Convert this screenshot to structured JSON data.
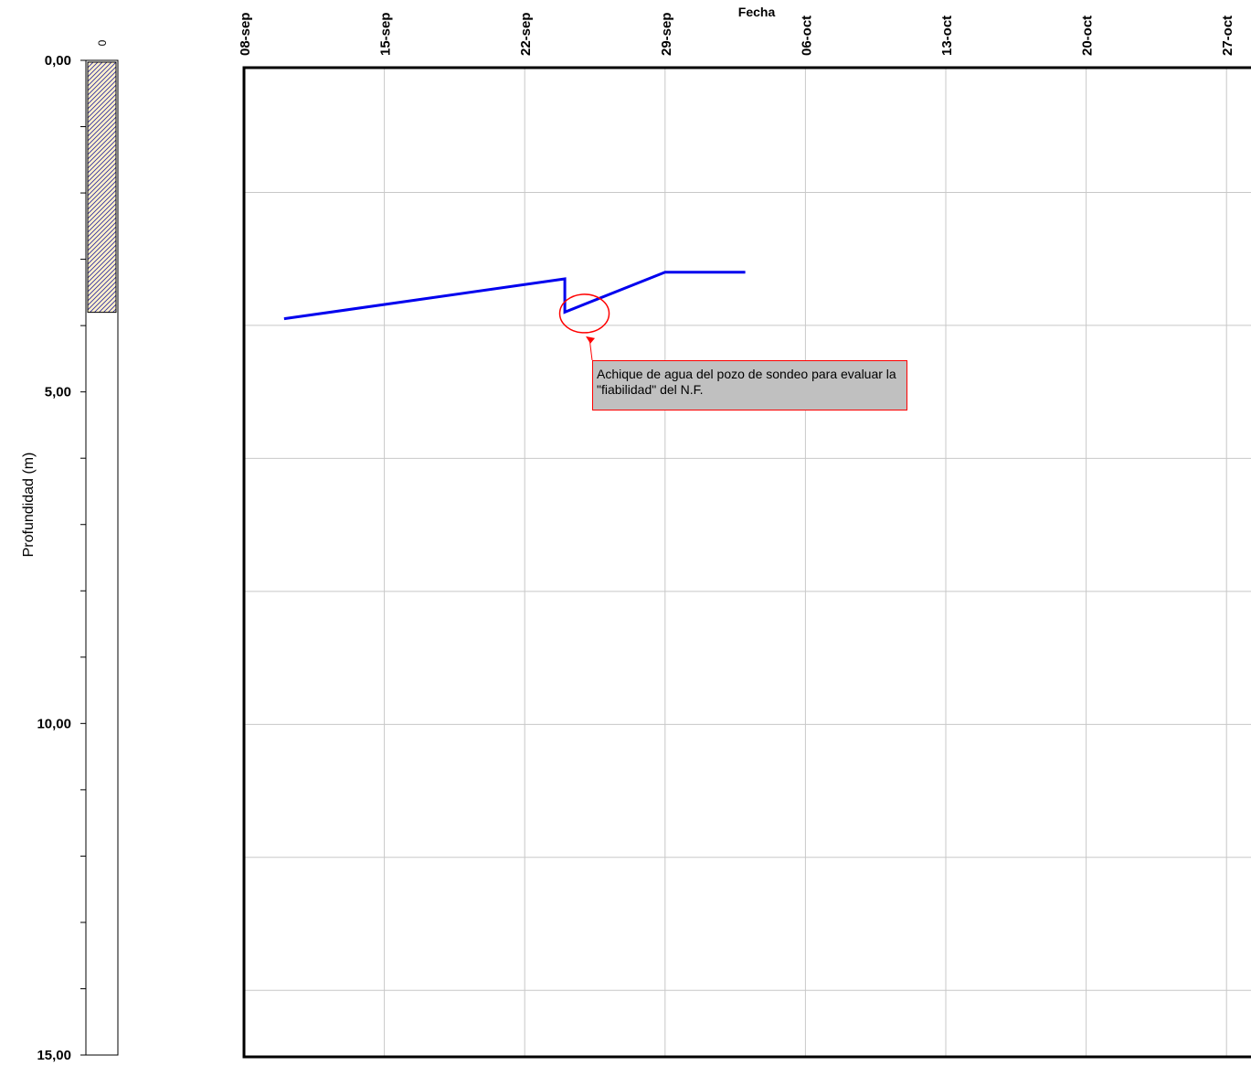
{
  "chart_data": [
    {
      "type": "column",
      "ylabel": "Profundidad (m)",
      "column_label": "0",
      "ylim": [
        0,
        15
      ],
      "yticks": [
        "0,00",
        "5,00",
        "10,00",
        "15,00"
      ],
      "fill_top": 0,
      "fill_bottom": 3.8,
      "fill_color": "#fff2cc",
      "hatch_color": "#3030a0"
    },
    {
      "type": "line",
      "xlabel": "Fecha",
      "xticks": [
        "08-sep",
        "15-sep",
        "22-sep",
        "29-sep",
        "06-oct",
        "13-oct",
        "20-oct",
        "27-oct"
      ],
      "xlim": [
        "2008-09-08",
        "2008-11-03"
      ],
      "ylim": [
        0,
        15
      ],
      "grid": true,
      "series": [
        {
          "color": "#0000ee",
          "points": [
            {
              "x": "2008-09-10",
              "y": 3.9
            },
            {
              "x": "2008-09-24",
              "y": 3.3
            },
            {
              "x": "2008-09-24",
              "y": 3.8
            },
            {
              "x": "2008-09-29",
              "y": 3.2
            },
            {
              "x": "2008-10-03",
              "y": 3.2
            }
          ]
        }
      ],
      "annotation": {
        "text": "Achique de agua del pozo de sondeo para evaluar la \"fiabilidad\" del N.F.",
        "color": "#ff0000",
        "box_color": "#c0c0c0",
        "target": {
          "x": "2008-09-25",
          "y": 4.0
        }
      }
    }
  ]
}
